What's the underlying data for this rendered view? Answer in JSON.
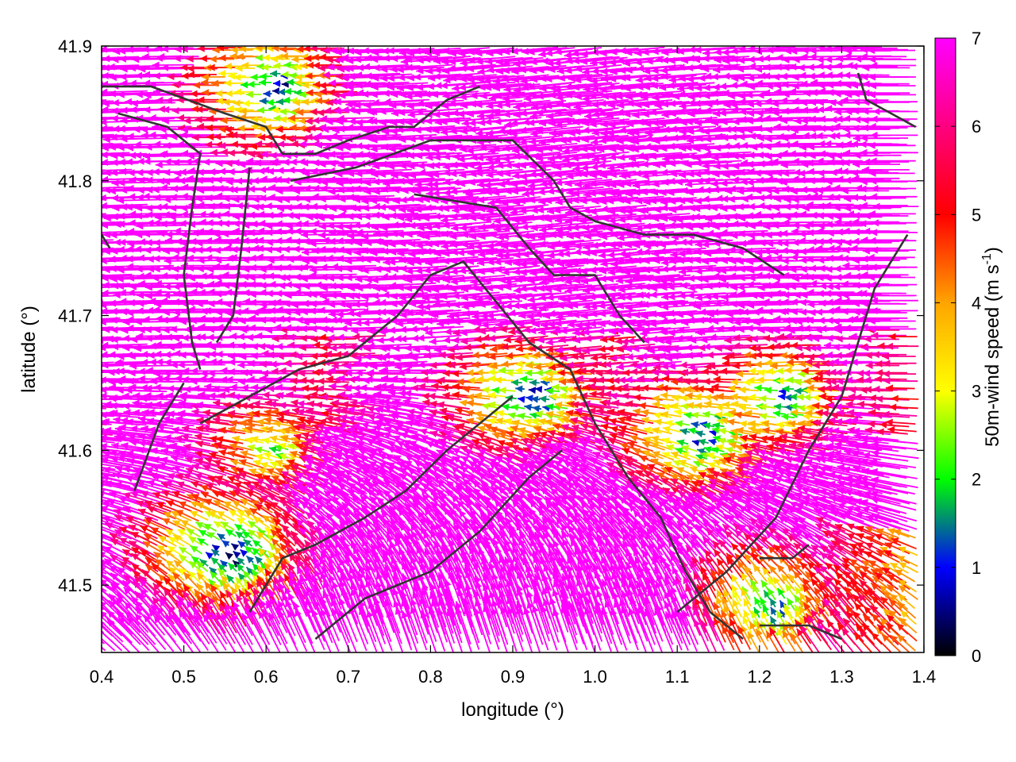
{
  "chart_data": {
    "type": "vector-field",
    "title": "",
    "xlabel": "longitude (°)",
    "ylabel": "latitude (°)",
    "xlim": [
      0.4,
      1.4
    ],
    "ylim": [
      41.45,
      41.9
    ],
    "xticks": [
      "0.4",
      "0.5",
      "0.6",
      "0.7",
      "0.8",
      "0.9",
      "1.0",
      "1.1",
      "1.2",
      "1.3",
      "1.4"
    ],
    "yticks": [
      "41.5",
      "41.6",
      "41.7",
      "41.8",
      "41.9"
    ],
    "grid": false,
    "colorbar": {
      "label": "50m-wind speed (m s",
      "label_sup": "-1",
      "label_end": ")",
      "range": [
        0,
        7
      ],
      "ticks": [
        "0",
        "1",
        "2",
        "3",
        "4",
        "5",
        "6",
        "7"
      ],
      "colors": [
        "#000000",
        "#0000ff",
        "#00ff00",
        "#ffff00",
        "#ffa500",
        "#ff0000",
        "#ff00ff"
      ]
    },
    "regions": [
      {
        "name": "calm",
        "x": 0.62,
        "y": 41.87,
        "speed": 1.5
      },
      {
        "name": "calm",
        "x": 0.56,
        "y": 41.52,
        "speed": 1.0
      },
      {
        "name": "calm",
        "x": 0.93,
        "y": 41.64,
        "speed": 1.5
      },
      {
        "name": "calm",
        "x": 1.14,
        "y": 41.61,
        "speed": 1.5
      },
      {
        "name": "calm",
        "x": 1.24,
        "y": 41.64,
        "speed": 2.0
      },
      {
        "name": "calm",
        "x": 1.22,
        "y": 41.48,
        "speed": 2.0
      },
      {
        "name": "calm",
        "x": 0.62,
        "y": 41.6,
        "speed": 3.0
      }
    ],
    "contours": [
      [
        [
          0.4,
          41.87
        ],
        [
          0.46,
          41.87
        ],
        [
          0.55,
          41.85
        ],
        [
          0.6,
          41.84
        ],
        [
          0.62,
          41.82
        ],
        [
          0.66,
          41.82
        ],
        [
          0.7,
          41.83
        ],
        [
          0.75,
          41.84
        ],
        [
          0.78,
          41.84
        ],
        [
          0.82,
          41.86
        ],
        [
          0.86,
          41.87
        ]
      ],
      [
        [
          0.42,
          41.85
        ],
        [
          0.48,
          41.84
        ],
        [
          0.52,
          41.82
        ],
        [
          0.51,
          41.78
        ],
        [
          0.5,
          41.73
        ],
        [
          0.51,
          41.68
        ],
        [
          0.52,
          41.66
        ]
      ],
      [
        [
          0.58,
          41.81
        ],
        [
          0.57,
          41.75
        ],
        [
          0.56,
          41.7
        ],
        [
          0.54,
          41.68
        ]
      ],
      [
        [
          0.63,
          41.8
        ],
        [
          0.71,
          41.81
        ],
        [
          0.8,
          41.83
        ],
        [
          0.9,
          41.83
        ],
        [
          0.95,
          41.8
        ],
        [
          0.97,
          41.78
        ],
        [
          1.0,
          41.77
        ],
        [
          1.06,
          41.76
        ],
        [
          1.12,
          41.76
        ],
        [
          1.18,
          41.75
        ],
        [
          1.23,
          41.73
        ]
      ],
      [
        [
          0.78,
          41.79
        ],
        [
          0.88,
          41.78
        ],
        [
          0.92,
          41.75
        ],
        [
          0.95,
          41.73
        ],
        [
          1.0,
          41.73
        ],
        [
          1.03,
          41.7
        ],
        [
          1.06,
          41.68
        ]
      ],
      [
        [
          0.52,
          41.62
        ],
        [
          0.58,
          41.64
        ],
        [
          0.64,
          41.66
        ],
        [
          0.7,
          41.67
        ],
        [
          0.76,
          41.7
        ],
        [
          0.8,
          41.73
        ],
        [
          0.84,
          41.74
        ],
        [
          0.88,
          41.71
        ],
        [
          0.92,
          41.68
        ],
        [
          0.97,
          41.66
        ],
        [
          1.0,
          41.62
        ],
        [
          1.04,
          41.58
        ],
        [
          1.08,
          41.55
        ],
        [
          1.11,
          41.51
        ],
        [
          1.14,
          41.48
        ],
        [
          1.18,
          41.46
        ]
      ],
      [
        [
          0.44,
          41.57
        ],
        [
          0.47,
          41.62
        ],
        [
          0.5,
          41.65
        ]
      ],
      [
        [
          0.58,
          41.48
        ],
        [
          0.62,
          41.52
        ],
        [
          0.66,
          41.53
        ],
        [
          0.72,
          41.55
        ],
        [
          0.77,
          41.57
        ],
        [
          0.82,
          41.6
        ],
        [
          0.86,
          41.62
        ],
        [
          0.9,
          41.64
        ]
      ],
      [
        [
          0.66,
          41.46
        ],
        [
          0.72,
          41.49
        ],
        [
          0.8,
          41.51
        ],
        [
          0.86,
          41.54
        ],
        [
          0.92,
          41.58
        ],
        [
          0.96,
          41.6
        ]
      ],
      [
        [
          1.1,
          41.48
        ],
        [
          1.16,
          41.51
        ],
        [
          1.22,
          41.55
        ],
        [
          1.26,
          41.6
        ],
        [
          1.3,
          41.64
        ],
        [
          1.34,
          41.72
        ],
        [
          1.38,
          41.76
        ]
      ],
      [
        [
          1.2,
          41.47
        ],
        [
          1.26,
          41.47
        ],
        [
          1.3,
          41.46
        ]
      ],
      [
        [
          1.2,
          41.52
        ],
        [
          1.24,
          41.52
        ],
        [
          1.26,
          41.53
        ]
      ],
      [
        [
          1.06,
          41.76
        ],
        [
          1.08,
          41.76
        ]
      ],
      [
        [
          0.4,
          41.76
        ],
        [
          0.41,
          41.75
        ]
      ],
      [
        [
          1.32,
          41.88
        ],
        [
          1.33,
          41.86
        ],
        [
          1.36,
          41.85
        ],
        [
          1.39,
          41.84
        ]
      ]
    ]
  }
}
